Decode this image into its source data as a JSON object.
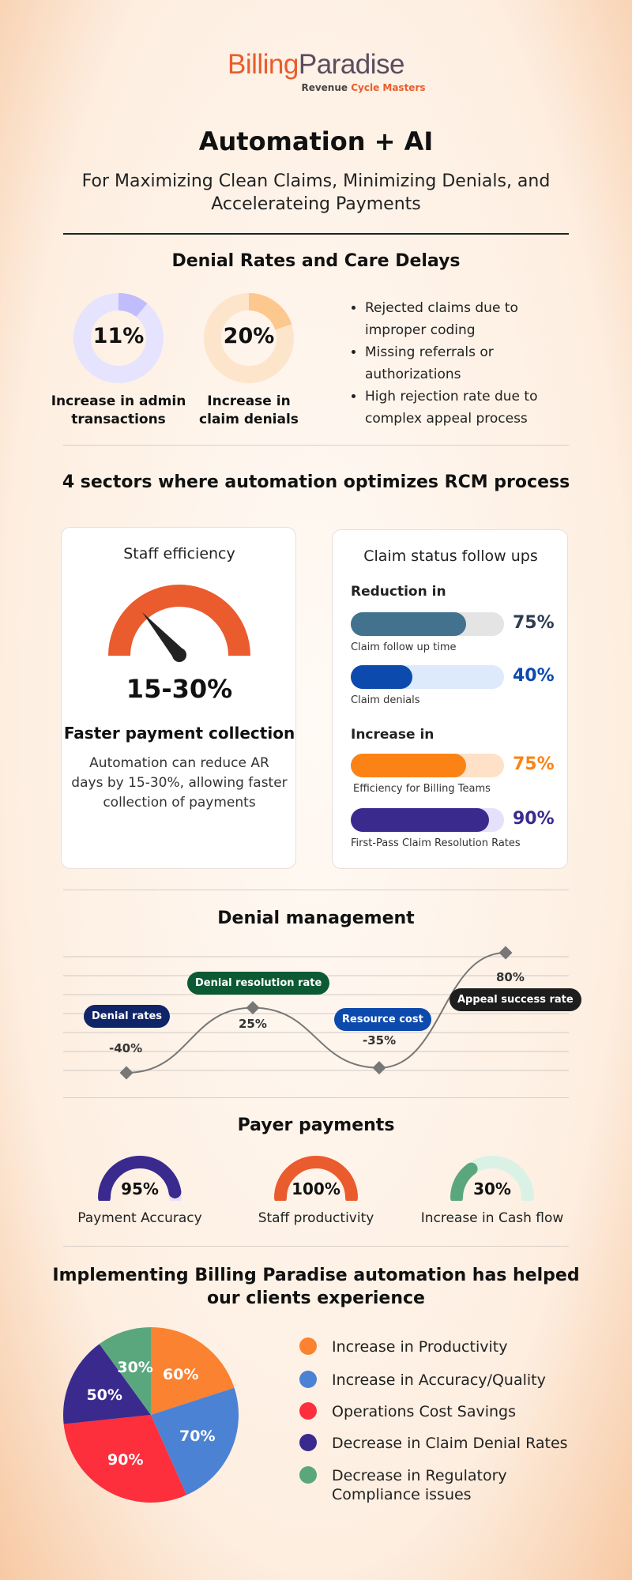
{
  "logo": {
    "part1": "Billing",
    "part2": "Paradise",
    "tag_part1": "Revenue ",
    "tag_part2": "Cycle Masters"
  },
  "header": {
    "title": "Automation + AI",
    "subtitle_line1": "For Maximizing Clean Claims, Minimizing Denials, and",
    "subtitle_line2": "Accelerateing Payments"
  },
  "denial_rates": {
    "title": "Denial Rates and Care Delays",
    "donuts": [
      {
        "value": "11%",
        "fraction": 0.11,
        "label_line1": "Increase in admin",
        "label_line2": "transactions",
        "color": "#c1bcfc",
        "track": "#e5e3fd"
      },
      {
        "value": "20%",
        "fraction": 0.2,
        "label_line1": "Increase in",
        "label_line2": "claim denials",
        "color": "#fdc88e",
        "track": "#fde5cc"
      }
    ],
    "bullets": [
      "Rejected claims due to improper coding",
      "Missing referrals or authorizations",
      "High rejection rate due to complex appeal process"
    ]
  },
  "sectors": {
    "title": "4 sectors where automation optimizes RCM process",
    "staff": {
      "title": "Staff efficiency",
      "gauge_value": "15-30%",
      "heading": "Faster payment collection",
      "text_line1": "Automation can reduce AR",
      "text_line2": "days by 15-30%, allowing faster",
      "text_line3": "collection of payments",
      "color": "#ea5b2e"
    },
    "claims": {
      "title": "Claim status follow ups",
      "reduction_label": "Reduction in",
      "increase_label": "Increase in",
      "reduction_bars": [
        {
          "pct": "75%",
          "fraction": 0.75,
          "caption": "Claim follow up time",
          "fill": "#43728f",
          "track": "#e4e4e4",
          "text": "#2d3e50"
        },
        {
          "pct": "40%",
          "fraction": 0.4,
          "caption": "Claim denials",
          "fill": "#0d4aad",
          "track": "#dceafc",
          "text": "#0d4aad"
        }
      ],
      "increase_bars": [
        {
          "pct": "75%",
          "fraction": 0.75,
          "caption": "Efficiency for Billing Teams",
          "fill": "#fb8316",
          "track": "#fee1c6",
          "text": "#fb8316"
        },
        {
          "pct": "90%",
          "fraction": 0.9,
          "caption": "First-Pass Claim Resolution Rates",
          "fill": "#3a2a8e",
          "track": "#e6e1fb",
          "text": "#3a2a8e"
        }
      ]
    }
  },
  "denial_management": {
    "title": "Denial management",
    "points": [
      {
        "value": -40,
        "display": "-40%",
        "label": "Denial rates",
        "color": "#102468"
      },
      {
        "value": 25,
        "display": "25%",
        "label": "Denial resolution rate",
        "color": "#0c5a34"
      },
      {
        "value": -35,
        "display": "-35%",
        "label": "Resource cost",
        "color": "#0d4aad"
      },
      {
        "value": 80,
        "display": "80%",
        "label": "Appeal success rate",
        "color": "#1e1e1e"
      }
    ]
  },
  "payer_payments": {
    "title": "Payer payments",
    "gauges": [
      {
        "value": "95%",
        "fraction": 0.95,
        "label": "Payment Accuracy",
        "color": "#3a2a8e",
        "track": "#e6e1fb"
      },
      {
        "value": "100%",
        "fraction": 1.0,
        "label": "Staff productivity",
        "color": "#ea5b2e",
        "track": "#fde0d2"
      },
      {
        "value": "30%",
        "fraction": 0.3,
        "label": "Increase in Cash flow",
        "color": "#5aa77e",
        "track": "#daf2e6"
      }
    ]
  },
  "clients": {
    "title_line1": "Implementing Billing Paradise automation has helped",
    "title_line2": "our clients experience",
    "chart_data": {
      "type": "pie",
      "slices": [
        {
          "label": "60%",
          "value": 60,
          "name": "Increase in Productivity",
          "color": "#fb8230"
        },
        {
          "label": "70%",
          "value": 70,
          "name": "Increase in Accuracy/Quality",
          "color": "#4c82d4"
        },
        {
          "label": "90%",
          "value": 90,
          "name": "Operations Cost Savings",
          "color": "#fd2f3d"
        },
        {
          "label": "50%",
          "value": 50,
          "name": "Decrease in Claim Denial Rates",
          "color": "#3a2a8e"
        },
        {
          "label": "30%",
          "value": 30,
          "name": "Decrease in Regulatory Compliance issues",
          "color": "#5aa77e"
        }
      ]
    },
    "legend": [
      {
        "line1": "Increase in Productivity",
        "line2": ""
      },
      {
        "line1": "Increase in Accuracy/Quality",
        "line2": ""
      },
      {
        "line1": "Operations Cost Savings",
        "line2": ""
      },
      {
        "line1": "Decrease in Claim Denial Rates",
        "line2": ""
      },
      {
        "line1": "Decrease in Regulatory",
        "line2": "Compliance issues"
      }
    ]
  }
}
